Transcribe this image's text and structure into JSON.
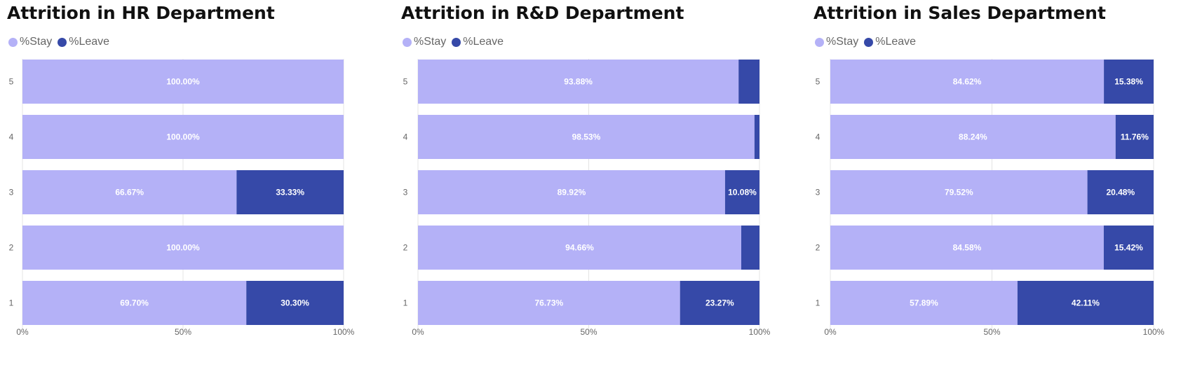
{
  "colors": {
    "stay": "#b4b1f7",
    "leave": "#3649a8",
    "grid": "#e4e4e4",
    "tick": "#666666"
  },
  "chart_data": [
    {
      "type": "bar",
      "orientation": "horizontal",
      "stacked": "100%",
      "title": "Attrition in HR Department",
      "legend": {
        "position": "top-left",
        "entries": [
          "%Stay",
          "%Leave"
        ]
      },
      "categories": [
        "5",
        "4",
        "3",
        "2",
        "1"
      ],
      "series": [
        {
          "name": "%Stay",
          "values": [
            100.0,
            100.0,
            66.67,
            100.0,
            69.7
          ],
          "labels": [
            "100.00%",
            "100.00%",
            "66.67%",
            "100.00%",
            "69.70%"
          ]
        },
        {
          "name": "%Leave",
          "values": [
            0.0,
            0.0,
            33.33,
            0.0,
            30.3
          ],
          "labels": [
            "",
            "",
            "33.33%",
            "",
            "30.30%"
          ]
        }
      ],
      "xticks": [
        "0%",
        "50%",
        "100%"
      ],
      "xlim": [
        0,
        100
      ],
      "grid": true
    },
    {
      "type": "bar",
      "orientation": "horizontal",
      "stacked": "100%",
      "title": "Attrition in R&D Department",
      "legend": {
        "position": "top-left",
        "entries": [
          "%Stay",
          "%Leave"
        ]
      },
      "categories": [
        "5",
        "4",
        "3",
        "2",
        "1"
      ],
      "series": [
        {
          "name": "%Stay",
          "values": [
            93.88,
            98.53,
            89.92,
            94.66,
            76.73
          ],
          "labels": [
            "93.88%",
            "98.53%",
            "89.92%",
            "94.66%",
            "76.73%"
          ]
        },
        {
          "name": "%Leave",
          "values": [
            6.12,
            1.47,
            10.08,
            5.34,
            23.27
          ],
          "labels": [
            "",
            "",
            "10.08%",
            "",
            "23.27%"
          ]
        }
      ],
      "xticks": [
        "0%",
        "50%",
        "100%"
      ],
      "xlim": [
        0,
        100
      ],
      "grid": true
    },
    {
      "type": "bar",
      "orientation": "horizontal",
      "stacked": "100%",
      "title": "Attrition in Sales Department",
      "legend": {
        "position": "top-left",
        "entries": [
          "%Stay",
          "%Leave"
        ]
      },
      "categories": [
        "5",
        "4",
        "3",
        "2",
        "1"
      ],
      "series": [
        {
          "name": "%Stay",
          "values": [
            84.62,
            88.24,
            79.52,
            84.58,
            57.89
          ],
          "labels": [
            "84.62%",
            "88.24%",
            "79.52%",
            "84.58%",
            "57.89%"
          ]
        },
        {
          "name": "%Leave",
          "values": [
            15.38,
            11.76,
            20.48,
            15.42,
            42.11
          ],
          "labels": [
            "15.38%",
            "11.76%",
            "20.48%",
            "15.42%",
            "42.11%"
          ]
        }
      ],
      "xticks": [
        "0%",
        "50%",
        "100%"
      ],
      "xlim": [
        0,
        100
      ],
      "grid": true
    }
  ]
}
